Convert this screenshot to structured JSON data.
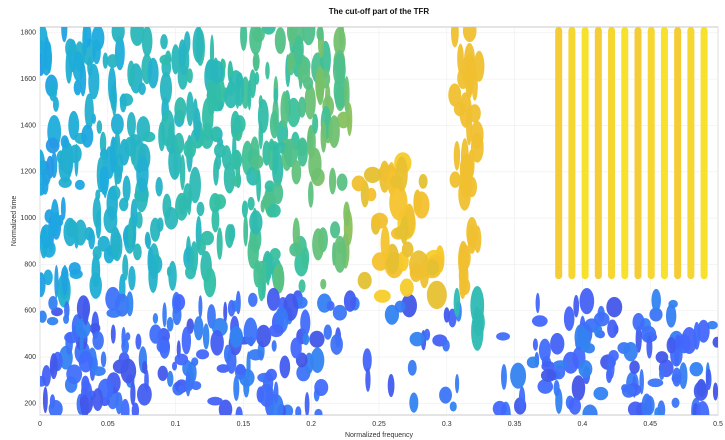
{
  "chart_data": {
    "type": "tfr-image",
    "title": "The cut-off part of the TFR",
    "xlabel": "Normalized frequency",
    "ylabel": "Normalized time",
    "xlim": [
      0,
      0.5
    ],
    "xticks": [
      0,
      0.05,
      0.1,
      0.15,
      0.2,
      0.25,
      0.3,
      0.35,
      0.4,
      0.45,
      0.5
    ],
    "ylim": [
      150,
      1825
    ],
    "yticks": [
      200,
      400,
      600,
      800,
      1000,
      1200,
      1400,
      1600,
      1800
    ],
    "grid": true,
    "colormap": [
      "#3e26a8",
      "#4367fd",
      "#1caadf",
      "#35c0a0",
      "#b8c236",
      "#f5c02f",
      "#f9fb15"
    ]
  }
}
